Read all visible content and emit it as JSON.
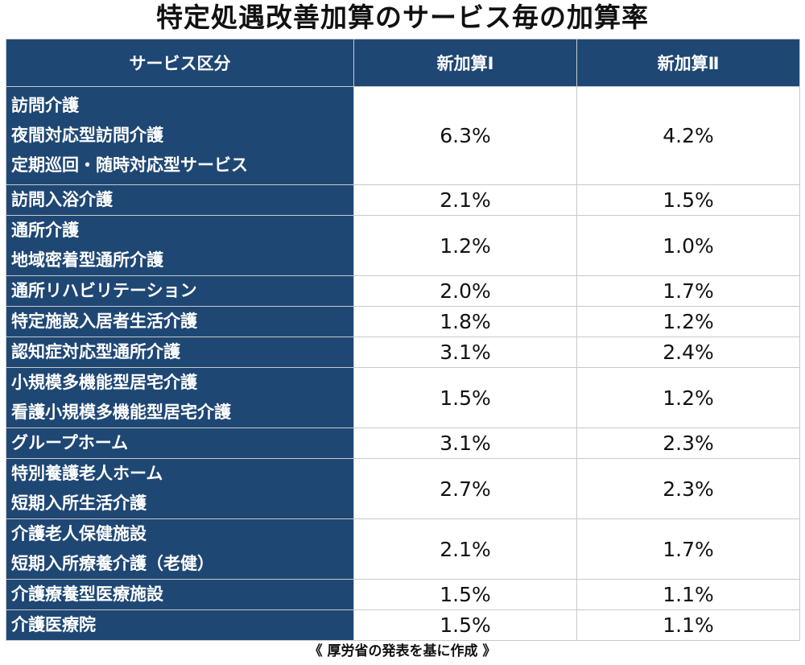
{
  "title": "特定処遇改善加算のサービス毎の加算率",
  "headers": {
    "service": "サービス区分",
    "rate1": "新加算Ⅰ",
    "rate2": "新加算Ⅱ"
  },
  "rows": [
    {
      "services": [
        "訪問介護",
        "夜間対応型訪問介護",
        "定期巡回・随時対応型サービス"
      ],
      "rate1": "6.3%",
      "rate2": "4.2%"
    },
    {
      "services": [
        "訪問入浴介護"
      ],
      "rate1": "2.1%",
      "rate2": "1.5%"
    },
    {
      "services": [
        "通所介護",
        "地域密着型通所介護"
      ],
      "rate1": "1.2%",
      "rate2": "1.0%"
    },
    {
      "services": [
        "通所リハビリテーション"
      ],
      "rate1": "2.0%",
      "rate2": "1.7%"
    },
    {
      "services": [
        "特定施設入居者生活介護"
      ],
      "rate1": "1.8%",
      "rate2": "1.2%"
    },
    {
      "services": [
        "認知症対応型通所介護"
      ],
      "rate1": "3.1%",
      "rate2": "2.4%"
    },
    {
      "services": [
        "小規模多機能型居宅介護",
        "看護小規模多機能型居宅介護"
      ],
      "rate1": "1.5%",
      "rate2": "1.2%"
    },
    {
      "services": [
        "グループホーム"
      ],
      "rate1": "3.1%",
      "rate2": "2.3%"
    },
    {
      "services": [
        "特別養護老人ホーム",
        "短期入所生活介護"
      ],
      "rate1": "2.7%",
      "rate2": "2.3%"
    },
    {
      "services": [
        "介護老人保健施設",
        "短期入所療養介護（老健）"
      ],
      "rate1": "2.1%",
      "rate2": "1.7%"
    },
    {
      "services": [
        "介護療養型医療施設"
      ],
      "rate1": "1.5%",
      "rate2": "1.1%"
    },
    {
      "services": [
        "介護医療院"
      ],
      "rate1": "1.5%",
      "rate2": "1.1%"
    }
  ],
  "source_note": "《 厚労省の発表を基に作成 》",
  "colors": {
    "header_bg": "#1f4774",
    "header_text": "#ffffff",
    "cell_bg": "#ffffff",
    "border": "#c9c9c9"
  }
}
